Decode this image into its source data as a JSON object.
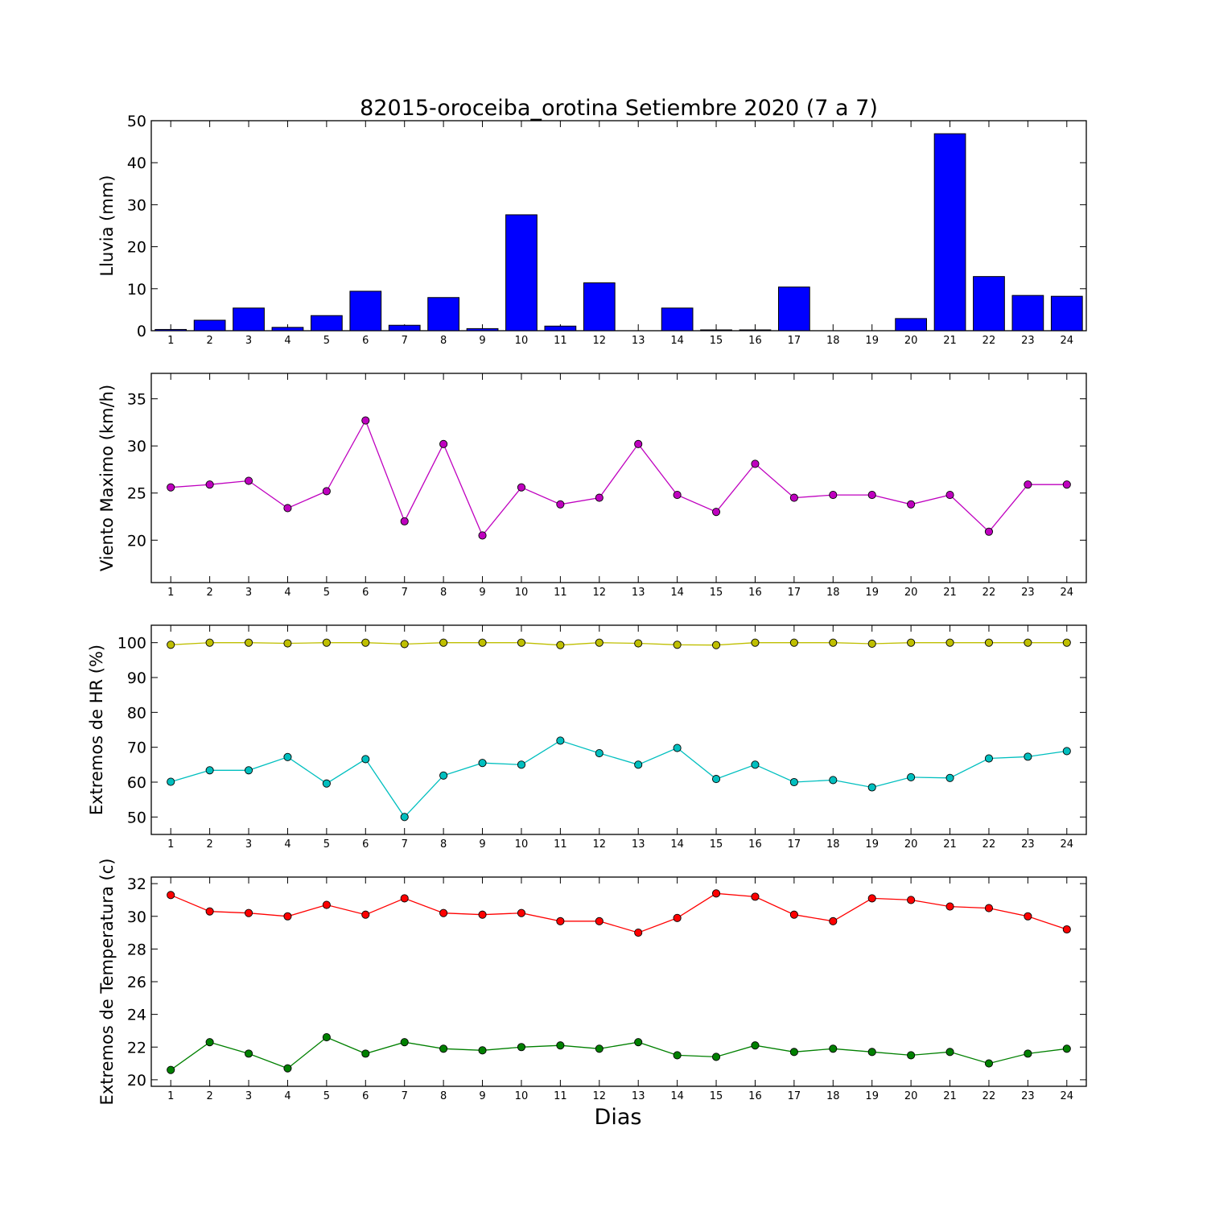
{
  "figure": {
    "title": "82015-oroceiba_orotina Setiembre 2020  (7 a 7)",
    "xlabel": "Dias"
  },
  "chart_data": [
    {
      "type": "bar",
      "ylabel": "Lluvia (mm)",
      "categories": [
        1,
        2,
        3,
        4,
        5,
        6,
        7,
        8,
        9,
        10,
        11,
        12,
        13,
        14,
        15,
        16,
        17,
        18,
        19,
        20,
        21,
        22,
        23,
        24
      ],
      "ylim": [
        0,
        50
      ],
      "yticks": [
        0,
        10,
        20,
        30,
        40,
        50
      ],
      "series": [
        {
          "color": "#0000ff",
          "values": [
            0.3,
            2.5,
            5.4,
            0.8,
            3.6,
            9.4,
            1.3,
            7.9,
            0.5,
            27.6,
            1.1,
            11.4,
            0.0,
            5.4,
            0.2,
            0.2,
            10.4,
            0.0,
            0.0,
            2.9,
            46.9,
            12.9,
            8.4,
            8.2
          ]
        }
      ]
    },
    {
      "type": "line",
      "ylabel": "Viento Maximo (km/h)",
      "categories": [
        1,
        2,
        3,
        4,
        5,
        6,
        7,
        8,
        9,
        10,
        11,
        12,
        13,
        14,
        15,
        16,
        17,
        18,
        19,
        20,
        21,
        22,
        23,
        24
      ],
      "ylim": [
        15.5,
        37.7
      ],
      "yticks": [
        20,
        25,
        30,
        35
      ],
      "series": [
        {
          "color": "#bf00bf",
          "values": [
            25.6,
            25.9,
            26.3,
            23.4,
            25.2,
            32.7,
            22.0,
            30.2,
            20.5,
            25.6,
            23.8,
            24.5,
            30.2,
            24.8,
            23.0,
            28.1,
            24.5,
            24.8,
            24.8,
            23.8,
            24.8,
            20.9,
            25.9,
            25.9
          ]
        }
      ]
    },
    {
      "type": "line",
      "ylabel": "Extremos de HR (%)",
      "categories": [
        1,
        2,
        3,
        4,
        5,
        6,
        7,
        8,
        9,
        10,
        11,
        12,
        13,
        14,
        15,
        16,
        17,
        18,
        19,
        20,
        21,
        22,
        23,
        24
      ],
      "ylim": [
        45,
        105
      ],
      "yticks": [
        50,
        60,
        70,
        80,
        90,
        100
      ],
      "series": [
        {
          "color": "#bfbf00",
          "values": [
            99.4,
            100,
            100,
            99.8,
            100,
            100,
            99.6,
            100,
            100,
            100,
            99.3,
            100,
            99.8,
            99.4,
            99.3,
            100,
            100,
            100,
            99.7,
            100,
            100,
            100,
            100,
            100
          ]
        },
        {
          "color": "#00bfbf",
          "values": [
            60.1,
            63.4,
            63.4,
            67.2,
            59.6,
            66.6,
            50.0,
            61.9,
            65.5,
            65.0,
            71.9,
            68.3,
            65.0,
            69.8,
            60.9,
            65.0,
            60.0,
            60.6,
            58.5,
            61.4,
            61.2,
            66.8,
            67.3,
            68.9
          ]
        }
      ]
    },
    {
      "type": "line",
      "ylabel": "Extremos de Temperatura (c)",
      "categories": [
        1,
        2,
        3,
        4,
        5,
        6,
        7,
        8,
        9,
        10,
        11,
        12,
        13,
        14,
        15,
        16,
        17,
        18,
        19,
        20,
        21,
        22,
        23,
        24
      ],
      "ylim": [
        19.6,
        32.4
      ],
      "yticks": [
        20,
        22,
        24,
        26,
        28,
        30,
        32
      ],
      "series": [
        {
          "color": "#ff0000",
          "values": [
            31.3,
            30.3,
            30.2,
            30.0,
            30.7,
            30.1,
            31.1,
            30.2,
            30.1,
            30.2,
            29.7,
            29.7,
            29.0,
            29.9,
            31.4,
            31.2,
            30.1,
            29.7,
            31.1,
            31.0,
            30.6,
            30.5,
            30.0,
            29.2
          ]
        },
        {
          "color": "#008000",
          "values": [
            20.6,
            22.3,
            21.6,
            20.7,
            22.6,
            21.6,
            22.3,
            21.9,
            21.8,
            22.0,
            22.1,
            21.9,
            22.3,
            21.5,
            21.4,
            22.1,
            21.7,
            21.9,
            21.7,
            21.5,
            21.7,
            21.0,
            21.6,
            21.9
          ]
        }
      ]
    }
  ]
}
